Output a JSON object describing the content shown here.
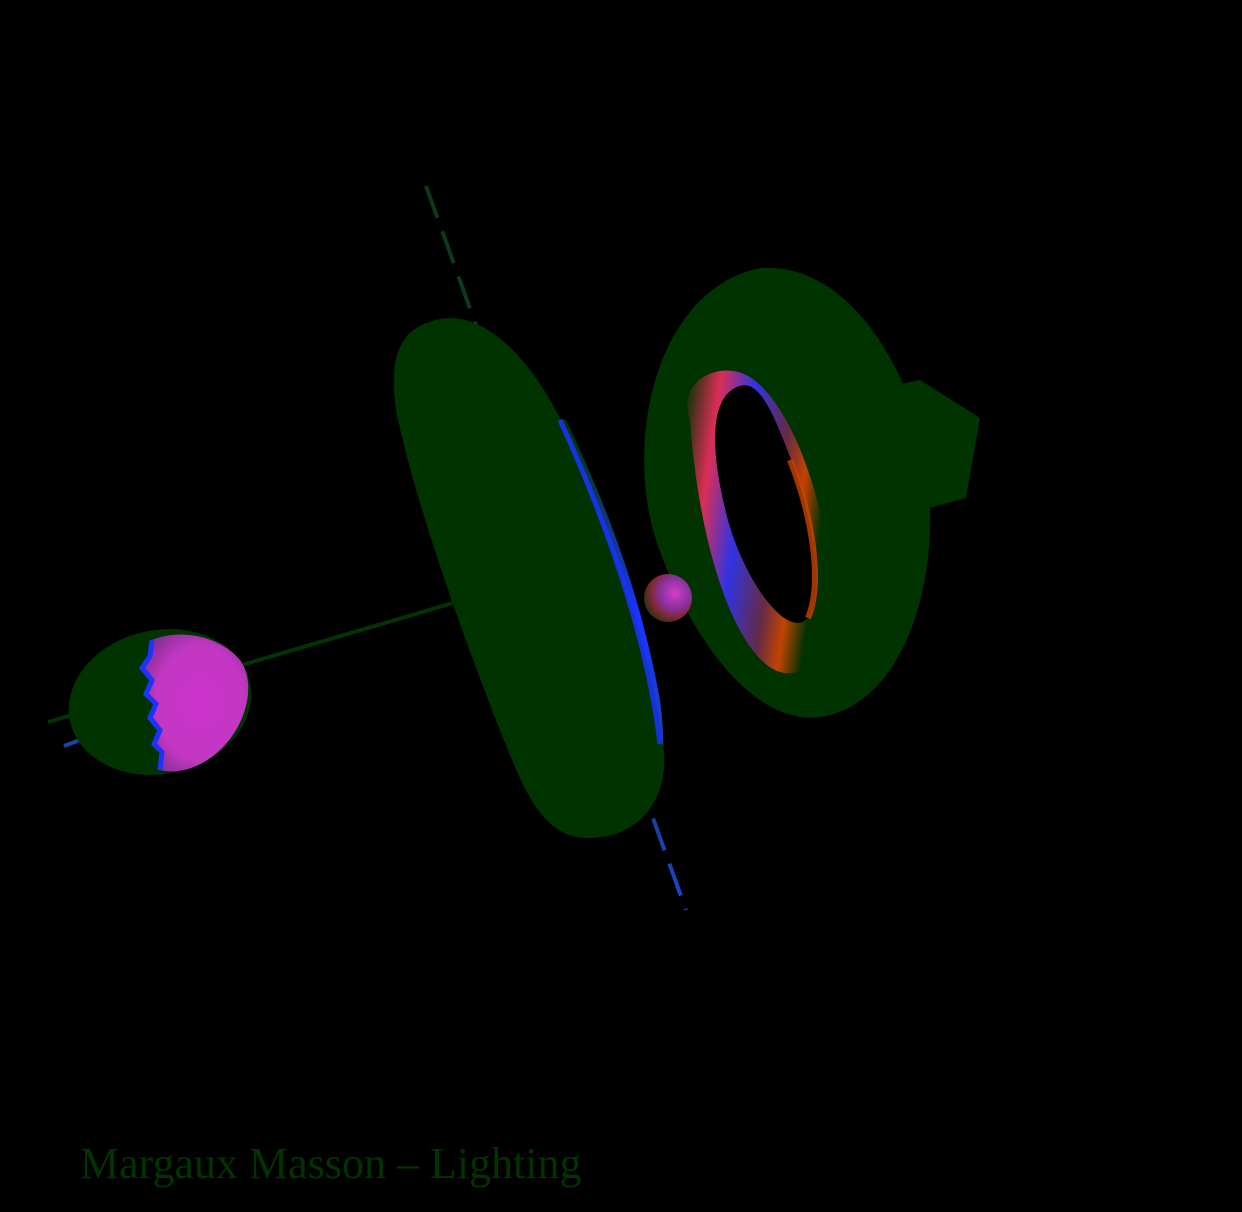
{
  "scene": {
    "caption": "Margaux Masson – Lighting",
    "colors": {
      "background": "#000000",
      "ambient_green": "#003300",
      "highlight_magenta": "#cc33cc",
      "highlight_blue": "#1a33ff",
      "highlight_red": "#e62e2e",
      "rim_orange": "#cc4400",
      "axis_blue": "#1a44cc",
      "caption": "#003300"
    },
    "objects": [
      "egg",
      "cylinder-disc",
      "small-sphere",
      "torus",
      "cone",
      "axis-line",
      "rod"
    ]
  }
}
